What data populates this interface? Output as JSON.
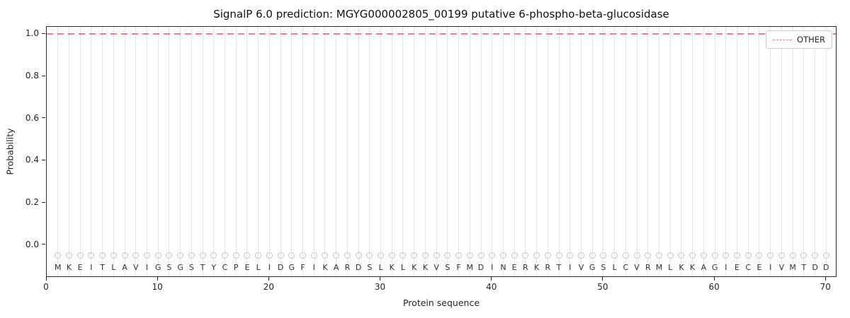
{
  "chart_data": {
    "type": "line",
    "title": "SignalP 6.0 prediction: MGYG000002805_00199 putative 6-phospho-beta-glucosidase",
    "xlabel": "Protein sequence",
    "ylabel": "Probability",
    "xlim": [
      0,
      71
    ],
    "ylim": [
      -0.155,
      1.035
    ],
    "xticks": [
      0,
      10,
      20,
      30,
      40,
      50,
      60,
      70
    ],
    "yticks": [
      "0.0",
      "0.2",
      "0.4",
      "0.6",
      "0.8",
      "1.0"
    ],
    "grid": "vertical gridline at every residue position",
    "legend": {
      "position": "upper right",
      "entries": [
        {
          "label": "OTHER",
          "style": "dashed",
          "color": "#f08080"
        }
      ]
    },
    "series": [
      {
        "name": "OTHER",
        "style": "dashed",
        "color": "#f08080",
        "constant_y": 1.0,
        "note": "constant probability 1.0 across all 70 residue positions"
      }
    ],
    "markers": {
      "shape": "open-circle",
      "color": "#c4c4c4",
      "y": -0.05
    },
    "sequence_letter_y": -0.105,
    "sequence": [
      "M",
      "K",
      "E",
      "I",
      "T",
      "L",
      "A",
      "V",
      "I",
      "G",
      "S",
      "G",
      "S",
      "T",
      "Y",
      "C",
      "P",
      "E",
      "L",
      "I",
      "D",
      "G",
      "F",
      "I",
      "K",
      "A",
      "R",
      "D",
      "S",
      "L",
      "K",
      "L",
      "K",
      "K",
      "V",
      "S",
      "F",
      "M",
      "D",
      "I",
      "N",
      "E",
      "R",
      "K",
      "R",
      "T",
      "I",
      "V",
      "G",
      "S",
      "L",
      "C",
      "V",
      "R",
      "M",
      "L",
      "K",
      "K",
      "A",
      "G",
      "I",
      "E",
      "C",
      "E",
      "I",
      "V",
      "M",
      "T",
      "D",
      "D"
    ]
  }
}
